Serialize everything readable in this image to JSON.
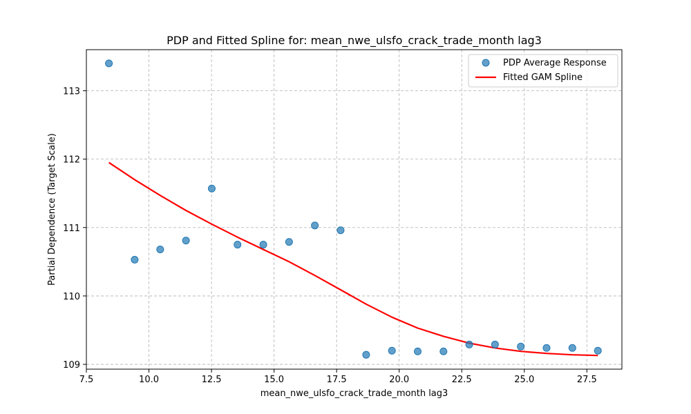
{
  "chart_data": {
    "type": "scatter",
    "title": "PDP and Fitted Spline for: mean_nwe_ulsfo_crack_trade_month lag3",
    "xlabel": "mean_nwe_ulsfo_crack_trade_month lag3",
    "ylabel": "Partial Dependence (Target Scale)",
    "xlim": [
      7.5,
      28.9
    ],
    "ylim": [
      108.93,
      113.6
    ],
    "xticks": [
      "7.5",
      "10.0",
      "12.5",
      "15.0",
      "17.5",
      "20.0",
      "22.5",
      "25.0",
      "27.5"
    ],
    "yticks": [
      "109",
      "110",
      "111",
      "112",
      "113"
    ],
    "grid": true,
    "legend_position": "top-right",
    "series": [
      {
        "name": "PDP Average Response",
        "type": "scatter",
        "color": "#1f77b4",
        "x": [
          8.4,
          9.43,
          10.45,
          11.48,
          12.51,
          13.54,
          14.57,
          15.6,
          16.63,
          17.66,
          18.68,
          19.71,
          20.74,
          21.77,
          22.8,
          23.83,
          24.86,
          25.89,
          26.92,
          27.94
        ],
        "y": [
          113.4,
          110.53,
          110.68,
          110.81,
          111.57,
          110.75,
          110.75,
          110.79,
          111.03,
          110.96,
          109.14,
          109.2,
          109.19,
          109.19,
          109.29,
          109.29,
          109.26,
          109.24,
          109.24,
          109.2
        ]
      },
      {
        "name": "Fitted GAM Spline",
        "type": "line",
        "color": "#ff0000",
        "x": [
          8.4,
          9.43,
          10.45,
          11.48,
          12.51,
          13.54,
          14.57,
          15.6,
          16.63,
          17.66,
          18.68,
          19.71,
          20.74,
          21.77,
          22.8,
          23.83,
          24.86,
          25.89,
          26.92,
          27.94
        ],
        "y": [
          111.95,
          111.7,
          111.47,
          111.25,
          111.05,
          110.86,
          110.68,
          110.5,
          110.3,
          110.09,
          109.88,
          109.69,
          109.53,
          109.41,
          109.31,
          109.24,
          109.19,
          109.16,
          109.14,
          109.13
        ]
      }
    ]
  }
}
